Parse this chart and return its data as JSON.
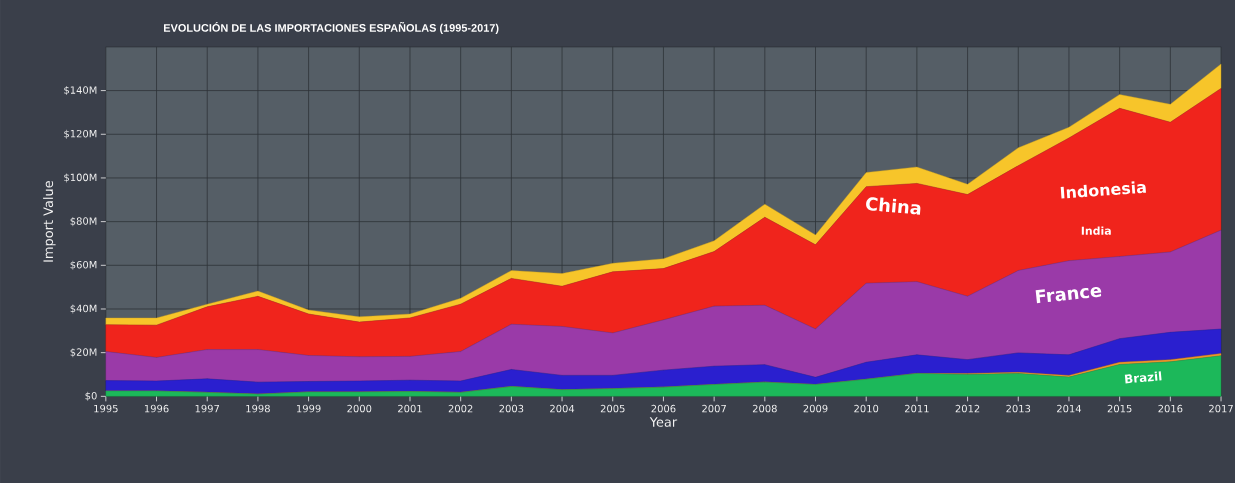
{
  "chart_data": {
    "type": "area",
    "stacked": true,
    "title": "EVOLUCIÓN DE LAS IMPORTACIONES ESPAÑOLAS  (1995-2017)",
    "xlabel": "Year",
    "ylabel": "Import Value",
    "x": [
      1995,
      1996,
      1997,
      1998,
      1999,
      2000,
      2001,
      2002,
      2003,
      2004,
      2005,
      2006,
      2007,
      2008,
      2009,
      2010,
      2011,
      2012,
      2013,
      2014,
      2015,
      2016,
      2017
    ],
    "series": [
      {
        "color": "#1cb85a",
        "values": [
          2.4,
          2.4,
          1.8,
          1.0,
          2.0,
          2.0,
          2.2,
          1.8,
          4.5,
          3.0,
          3.5,
          4.2,
          5.4,
          6.5,
          5.4,
          7.8,
          10.5,
          10.0,
          10.5,
          8.8,
          14.6,
          15.8,
          18.6
        ]
      },
      {
        "color": "#f0962a",
        "values": [
          0,
          0,
          0,
          0,
          0,
          0,
          0,
          0,
          0,
          0,
          0,
          0,
          0,
          0,
          0,
          0,
          0,
          0.5,
          0.5,
          0.8,
          1,
          1,
          1
        ]
      },
      {
        "color": "#2a1fcf",
        "values": [
          4.8,
          4.6,
          6.2,
          5.5,
          4.8,
          5.0,
          5.2,
          5.2,
          7.8,
          6.6,
          6.1,
          7.8,
          8.4,
          8.0,
          3.3,
          7.8,
          8.5,
          6.3,
          8.9,
          9.4,
          10.8,
          12.5,
          11.2
        ]
      },
      {
        "color": "#9a3aa8",
        "values": [
          13.3,
          10.8,
          13.4,
          14.9,
          11.9,
          11.1,
          10.9,
          13.5,
          20.7,
          22.4,
          19.4,
          23,
          27.5,
          27.2,
          22.1,
          36.2,
          33.5,
          29,
          37.7,
          43.1,
          37.6,
          36.8,
          45.3
        ]
      },
      {
        "color": "#f0241c",
        "values": [
          12.3,
          14.8,
          19.6,
          24.4,
          19,
          15.9,
          17.6,
          21.7,
          21,
          18.4,
          28,
          23.5,
          25,
          40.3,
          38.6,
          44.2,
          45,
          46.6,
          48,
          56.2,
          67.9,
          59.4,
          64.9
        ]
      },
      {
        "color": "#f7c52a",
        "values": [
          3.1,
          3.3,
          1.2,
          2.4,
          1.8,
          2.4,
          1.8,
          2.7,
          3.6,
          5.8,
          3.9,
          4.5,
          4.9,
          6,
          4.5,
          6.5,
          7.5,
          4.7,
          8.2,
          4.9,
          6.3,
          8.2,
          11.2
        ]
      }
    ],
    "xlim": [
      1995,
      2017
    ],
    "xticks": [
      1995,
      1996,
      1997,
      1998,
      1999,
      2000,
      2001,
      2002,
      2003,
      2004,
      2005,
      2006,
      2007,
      2008,
      2009,
      2010,
      2011,
      2012,
      2013,
      2014,
      2015,
      2016,
      2017
    ],
    "ylim": [
      0,
      160
    ],
    "yticks": [
      {
        "value": 0,
        "label": "$0"
      },
      {
        "value": 20,
        "label": "$20M"
      },
      {
        "value": 40,
        "label": "$40M"
      },
      {
        "value": 60,
        "label": "$60M"
      },
      {
        "value": 80,
        "label": "$80M"
      },
      {
        "value": 100,
        "label": "$100M"
      },
      {
        "value": 120,
        "label": "$120M"
      },
      {
        "value": 140,
        "label": "$140M"
      }
    ],
    "grid": true,
    "annotations": [
      "China",
      "Indonesia",
      "India",
      "France",
      "Brazil"
    ]
  }
}
